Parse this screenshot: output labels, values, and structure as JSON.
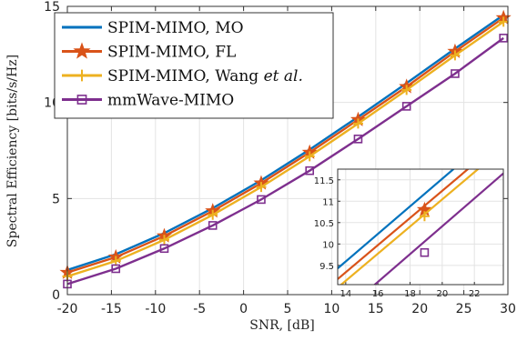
{
  "chart_data": [
    {
      "type": "line",
      "xlabel": "SNR, [dB]",
      "ylabel": "Spectral Efficiency [bits/s/Hz]",
      "xlim": [
        -20,
        30
      ],
      "ylim": [
        0,
        15
      ],
      "xticks": [
        "-20",
        "-15",
        "-10",
        "-5",
        "0",
        "5",
        "10",
        "15",
        "20",
        "25",
        "30"
      ],
      "yticks": [
        "0",
        "5",
        "10",
        "15"
      ],
      "grid": true,
      "legend_position": "top-left",
      "x": [
        -20,
        -14.5,
        -9,
        -3.5,
        2,
        7.5,
        13,
        18.5,
        24,
        29.5
      ],
      "series": [
        {
          "name": "SPIM-MIMO, MO",
          "name_parts": [
            {
              "text": "SPIM-MIMO, MO",
              "italic": false
            }
          ],
          "color": "#0072BD",
          "marker": "none",
          "values": [
            1.28,
            2.1,
            3.2,
            4.5,
            5.95,
            7.55,
            9.25,
            11.0,
            12.8,
            14.55
          ]
        },
        {
          "name": "SPIM-MIMO, FL",
          "name_parts": [
            {
              "text": "SPIM-MIMO, FL",
              "italic": false
            }
          ],
          "color": "#D95319",
          "marker": "pentagram",
          "values": [
            1.15,
            1.95,
            3.05,
            4.35,
            5.8,
            7.4,
            9.1,
            10.82,
            12.65,
            14.4
          ]
        },
        {
          "name": "SPIM-MIMO, Wang et al.",
          "name_parts": [
            {
              "text": "SPIM-MIMO, Wang ",
              "italic": false
            },
            {
              "text": "et al.",
              "italic": true
            }
          ],
          "color": "#EDB120",
          "marker": "plus",
          "values": [
            0.95,
            1.75,
            2.85,
            4.15,
            5.6,
            7.2,
            8.9,
            10.65,
            12.45,
            14.2
          ]
        },
        {
          "name": "mmWave-MIMO",
          "name_parts": [
            {
              "text": "mmWave-MIMO",
              "italic": false
            }
          ],
          "color": "#7E2F8E",
          "marker": "square",
          "values": [
            0.55,
            1.35,
            2.4,
            3.6,
            4.95,
            6.45,
            8.1,
            9.8,
            11.5,
            13.35
          ]
        }
      ]
    },
    {
      "type": "line",
      "role": "inset-zoom",
      "xlim": [
        13.5,
        23.8
      ],
      "ylim": [
        9.05,
        11.75
      ],
      "xticks": [
        "14",
        "16",
        "18",
        "20",
        "22"
      ],
      "yticks": [
        "9.5",
        "10",
        "10.5",
        "11",
        "11.5"
      ],
      "grid": true,
      "series": [
        {
          "name": "SPIM-MIMO, MO",
          "color": "#0072BD",
          "marker": "none",
          "x": [
            13.5,
            23.8
          ],
          "values": [
            9.43,
            12.75
          ]
        },
        {
          "name": "SPIM-MIMO, FL",
          "color": "#D95319",
          "marker": "pentagram",
          "x": [
            13.5,
            23.8
          ],
          "values": [
            9.18,
            12.45
          ],
          "marker_points": [
            [
              18.9,
              10.8
            ]
          ]
        },
        {
          "name": "SPIM-MIMO, Wang et al.",
          "color": "#EDB120",
          "marker": "plus",
          "x": [
            13.5,
            23.8
          ],
          "values": [
            8.98,
            12.25
          ],
          "marker_points": [
            [
              18.9,
              10.65
            ]
          ]
        },
        {
          "name": "mmWave-MIMO",
          "color": "#7E2F8E",
          "marker": "square",
          "x": [
            13.5,
            23.8
          ],
          "values": [
            8.3,
            11.65
          ],
          "marker_points": [
            [
              18.9,
              9.8
            ]
          ]
        }
      ]
    }
  ]
}
